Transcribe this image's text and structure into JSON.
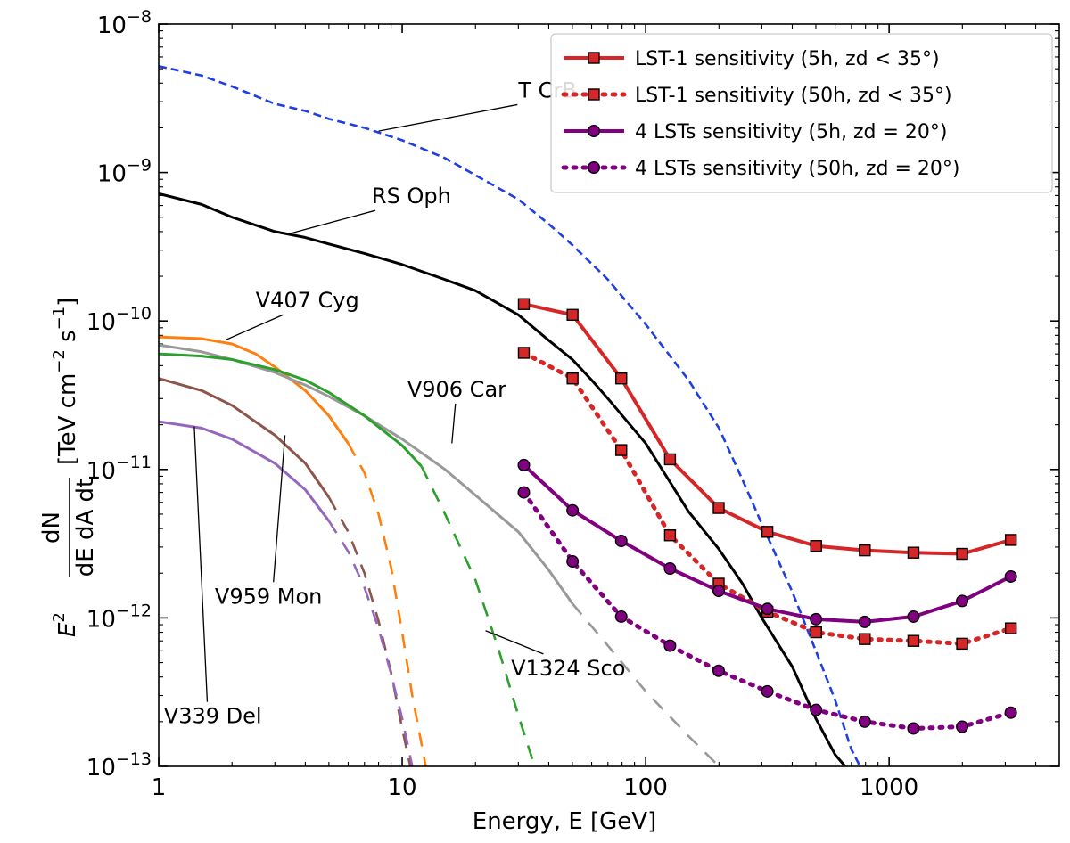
{
  "chart_data": {
    "type": "line",
    "xscale": "log",
    "yscale": "log",
    "xlim": [
      1,
      5000
    ],
    "ylim": [
      1e-13,
      1e-08
    ],
    "xlabel": "Energy, E [GeV]",
    "ylabel": "E^2 dN/(dE dA dt) [TeV cm^-2 s^-1]",
    "ylabel_parts": {
      "prefix": "E",
      "prefix_sup": "2",
      "numerator": "dN",
      "denominator": "dE dA dt",
      "unit_open": "[TeV cm",
      "unit_sup1": "−2",
      "unit_mid": " s",
      "unit_sup2": "−1",
      "unit_close": "]"
    },
    "xticks": [
      {
        "value": 1,
        "label": "1"
      },
      {
        "value": 10,
        "label": "10"
      },
      {
        "value": 100,
        "label": "100"
      },
      {
        "value": 1000,
        "label": "1000"
      }
    ],
    "yticks": [
      {
        "value": 1e-13,
        "base": "10",
        "exp": "−13"
      },
      {
        "value": 1e-12,
        "base": "10",
        "exp": "−12"
      },
      {
        "value": 1e-11,
        "base": "10",
        "exp": "−11"
      },
      {
        "value": 1e-10,
        "base": "10",
        "exp": "−10"
      },
      {
        "value": 1e-09,
        "base": "10",
        "exp": "−9"
      },
      {
        "value": 1e-08,
        "base": "10",
        "exp": "−8"
      }
    ],
    "legend_position": "top-right",
    "legend": [
      {
        "label": "LST-1 sensitivity (5h, zd < 35°)",
        "color": "#d62728",
        "style": "solid",
        "marker": "square",
        "series": "lst1_5h"
      },
      {
        "label": "LST-1 sensitivity (50h, zd < 35°)",
        "color": "#d62728",
        "style": "dotted",
        "marker": "square",
        "series": "lst1_50h"
      },
      {
        "label": "4 LSTs sensitivity (5h, zd = 20°)",
        "color": "#800080",
        "style": "solid",
        "marker": "circle",
        "series": "lst4_5h"
      },
      {
        "label": "4 LSTs sensitivity (50h, zd = 20°)",
        "color": "#800080",
        "style": "dotted",
        "marker": "circle",
        "series": "lst4_50h"
      }
    ],
    "series": [
      {
        "name": "T CrB",
        "id": "tcrb",
        "color": "#1f3fe0",
        "style": "dashed",
        "points": [
          [
            1,
            5.2e-09
          ],
          [
            1.5,
            4.5e-09
          ],
          [
            2,
            3.8e-09
          ],
          [
            3,
            2.9e-09
          ],
          [
            4,
            2.6e-09
          ],
          [
            5,
            2.3e-09
          ],
          [
            7,
            2e-09
          ],
          [
            10,
            1.65e-09
          ],
          [
            15,
            1.25e-09
          ],
          [
            20,
            9.6e-10
          ],
          [
            30,
            6.6e-10
          ],
          [
            40,
            4.5e-10
          ],
          [
            50,
            3.25e-10
          ],
          [
            70,
            1.9e-10
          ],
          [
            100,
            9.5e-11
          ],
          [
            150,
            4e-11
          ],
          [
            200,
            1.9e-11
          ],
          [
            250,
            8.5e-12
          ],
          [
            300,
            4.3e-12
          ],
          [
            400,
            1.5e-12
          ],
          [
            500,
            6e-13
          ],
          [
            600,
            2.8e-13
          ],
          [
            700,
            1.3e-13
          ],
          [
            760,
            1e-13
          ]
        ]
      },
      {
        "name": "RS Oph",
        "id": "rsoph",
        "color": "#000000",
        "style": "solid",
        "points": [
          [
            1,
            7.2e-10
          ],
          [
            1.5,
            6.1e-10
          ],
          [
            2,
            5e-10
          ],
          [
            3,
            4e-10
          ],
          [
            4,
            3.65e-10
          ],
          [
            5,
            3.3e-10
          ],
          [
            7,
            2.85e-10
          ],
          [
            10,
            2.4e-10
          ],
          [
            15,
            1.9e-10
          ],
          [
            20,
            1.6e-10
          ],
          [
            30,
            1.1e-10
          ],
          [
            40,
            7.4e-11
          ],
          [
            50,
            5.5e-11
          ],
          [
            60,
            4e-11
          ],
          [
            70,
            3e-11
          ],
          [
            100,
            1.5e-11
          ],
          [
            150,
            5.2e-12
          ],
          [
            200,
            2.9e-12
          ],
          [
            250,
            1.7e-12
          ],
          [
            300,
            1e-12
          ],
          [
            400,
            4.7e-13
          ],
          [
            500,
            2.1e-13
          ],
          [
            600,
            1.2e-13
          ],
          [
            660,
            1e-13
          ]
        ]
      },
      {
        "name": "V407 Cyg",
        "id": "v407cyg",
        "color": "#ff7f0e",
        "style": "solid",
        "points": [
          [
            1,
            7.8e-11
          ],
          [
            1.5,
            7.6e-11
          ],
          [
            2,
            7e-11
          ],
          [
            2.5,
            6e-11
          ],
          [
            3,
            4.9e-11
          ],
          [
            4,
            3.4e-11
          ],
          [
            5,
            2.3e-11
          ],
          [
            6,
            1.5e-11
          ]
        ]
      },
      {
        "name": "V407 Cyg (extrapolated)",
        "id": "v407cyg_ext",
        "color": "#ff7f0e",
        "style": "longdash",
        "points": [
          [
            6,
            1.5e-11
          ],
          [
            7,
            9.5e-12
          ],
          [
            8,
            5e-12
          ],
          [
            9,
            2.2e-12
          ],
          [
            10,
            8e-13
          ],
          [
            11,
            3e-13
          ],
          [
            12.5,
            1e-13
          ]
        ]
      },
      {
        "name": "V906 Car",
        "id": "v906car",
        "color": "#999999",
        "style": "solid",
        "points": [
          [
            1,
            6.9e-11
          ],
          [
            1.5,
            6.2e-11
          ],
          [
            2,
            5.5e-11
          ],
          [
            3,
            4.5e-11
          ],
          [
            4,
            3.7e-11
          ],
          [
            5,
            3.1e-11
          ],
          [
            7,
            2.3e-11
          ],
          [
            10,
            1.6e-11
          ],
          [
            15,
            1e-11
          ],
          [
            20,
            6.7e-12
          ],
          [
            30,
            3.8e-12
          ],
          [
            40,
            2.1e-12
          ],
          [
            50,
            1.25e-12
          ]
        ]
      },
      {
        "name": "V906 Car (extrapolated)",
        "id": "v906car_ext",
        "color": "#999999",
        "style": "longdash",
        "points": [
          [
            50,
            1.25e-12
          ],
          [
            70,
            6.5e-13
          ],
          [
            100,
            3.2e-13
          ],
          [
            150,
            1.6e-13
          ],
          [
            200,
            1e-13
          ]
        ]
      },
      {
        "name": "V1324 Sco",
        "id": "v1324sco",
        "color": "#2ca02c",
        "style": "solid",
        "points": [
          [
            1,
            6e-11
          ],
          [
            1.5,
            5.8e-11
          ],
          [
            2,
            5.5e-11
          ],
          [
            3,
            4.7e-11
          ],
          [
            4,
            4e-11
          ],
          [
            5,
            3.3e-11
          ],
          [
            7,
            2.3e-11
          ],
          [
            10,
            1.45e-11
          ],
          [
            12,
            1.05e-11
          ]
        ]
      },
      {
        "name": "V1324 Sco (extrapolated)",
        "id": "v1324sco_ext",
        "color": "#2ca02c",
        "style": "longdash",
        "points": [
          [
            12,
            1.05e-11
          ],
          [
            15,
            5e-12
          ],
          [
            20,
            1.8e-12
          ],
          [
            25,
            6e-13
          ],
          [
            30,
            2.2e-13
          ],
          [
            35,
            1e-13
          ]
        ]
      },
      {
        "name": "V959 Mon",
        "id": "v959mon",
        "color": "#8c564b",
        "style": "solid",
        "points": [
          [
            1,
            4.1e-11
          ],
          [
            1.5,
            3.4e-11
          ],
          [
            2,
            2.7e-11
          ],
          [
            3,
            1.7e-11
          ],
          [
            4,
            1.1e-11
          ],
          [
            5,
            6.5e-12
          ]
        ]
      },
      {
        "name": "V959 Mon (extrapolated)",
        "id": "v959mon_ext",
        "color": "#8c564b",
        "style": "longdash",
        "points": [
          [
            5,
            6.5e-12
          ],
          [
            6,
            3.8e-12
          ],
          [
            7,
            2e-12
          ],
          [
            8,
            9.5e-13
          ],
          [
            9,
            4.3e-13
          ],
          [
            10,
            1.8e-13
          ],
          [
            10.8,
            1e-13
          ]
        ]
      },
      {
        "name": "V339 Del",
        "id": "v339del",
        "color": "#9467bd",
        "style": "solid",
        "points": [
          [
            1,
            2.1e-11
          ],
          [
            1.5,
            1.9e-11
          ],
          [
            2,
            1.6e-11
          ],
          [
            3,
            1.1e-11
          ],
          [
            4,
            7.3e-12
          ],
          [
            5,
            4.5e-12
          ]
        ]
      },
      {
        "name": "V339 Del (extrapolated)",
        "id": "v339del_ext",
        "color": "#9467bd",
        "style": "longdash",
        "points": [
          [
            5,
            4.5e-12
          ],
          [
            6,
            2.8e-12
          ],
          [
            7,
            1.6e-12
          ],
          [
            8,
            8.5e-13
          ],
          [
            9,
            4.2e-13
          ],
          [
            10,
            2.1e-13
          ],
          [
            11,
            1e-13
          ]
        ]
      },
      {
        "name": "LST-1 sensitivity (5h, zd < 35°)",
        "id": "lst1_5h",
        "color": "#d62728",
        "style": "solid",
        "marker": "square",
        "points": [
          [
            31.6,
            1.3e-10
          ],
          [
            50.1,
            1.1e-10
          ],
          [
            79.4,
            4.1e-11
          ],
          [
            125.9,
            1.17e-11
          ],
          [
            199.5,
            5.5e-12
          ],
          [
            316.2,
            3.8e-12
          ],
          [
            501.2,
            3.05e-12
          ],
          [
            794.3,
            2.85e-12
          ],
          [
            1258.9,
            2.75e-12
          ],
          [
            1995.3,
            2.7e-12
          ],
          [
            3162.3,
            3.35e-12
          ]
        ]
      },
      {
        "name": "LST-1 sensitivity (50h, zd < 35°)",
        "id": "lst1_50h",
        "color": "#d62728",
        "style": "dotted",
        "marker": "square",
        "points": [
          [
            31.6,
            6.1e-11
          ],
          [
            50.1,
            4.1e-11
          ],
          [
            79.4,
            1.35e-11
          ],
          [
            125.9,
            3.6e-12
          ],
          [
            199.5,
            1.7e-12
          ],
          [
            316.2,
            1.1e-12
          ],
          [
            501.2,
            8e-13
          ],
          [
            794.3,
            7.2e-13
          ],
          [
            1258.9,
            7e-13
          ],
          [
            1995.3,
            6.7e-13
          ],
          [
            3162.3,
            8.5e-13
          ]
        ]
      },
      {
        "name": "4 LSTs sensitivity (5h, zd = 20°)",
        "id": "lst4_5h",
        "color": "#800080",
        "style": "solid",
        "marker": "circle",
        "points": [
          [
            31.6,
            1.07e-11
          ],
          [
            50.1,
            5.3e-12
          ],
          [
            79.4,
            3.3e-12
          ],
          [
            125.9,
            2.15e-12
          ],
          [
            199.5,
            1.52e-12
          ],
          [
            316.2,
            1.15e-12
          ],
          [
            501.2,
            9.8e-13
          ],
          [
            794.3,
            9.4e-13
          ],
          [
            1258.9,
            1.02e-12
          ],
          [
            1995.3,
            1.3e-12
          ],
          [
            3162.3,
            1.9e-12
          ]
        ]
      },
      {
        "name": "4 LSTs sensitivity (50h, zd = 20°)",
        "id": "lst4_50h",
        "color": "#800080",
        "style": "dotted",
        "marker": "circle",
        "points": [
          [
            31.6,
            7e-12
          ],
          [
            50.1,
            2.4e-12
          ],
          [
            79.4,
            1.02e-12
          ],
          [
            125.9,
            6.5e-13
          ],
          [
            199.5,
            4.4e-13
          ],
          [
            316.2,
            3.2e-13
          ],
          [
            501.2,
            2.4e-13
          ],
          [
            794.3,
            2e-13
          ],
          [
            1258.9,
            1.8e-13
          ],
          [
            1995.3,
            1.85e-13
          ],
          [
            3162.3,
            2.3e-13
          ]
        ]
      }
    ],
    "annotations": [
      {
        "text": "T CrB",
        "series": "tcrb",
        "point": [
          8,
          1.9e-09
        ],
        "label_at": [
          30,
          3.2e-09
        ],
        "anchor": "start"
      },
      {
        "text": "RS Oph",
        "series": "rsoph",
        "point": [
          3.5,
          3.9e-10
        ],
        "label_at": [
          7.5,
          6.2e-10
        ],
        "anchor": "start"
      },
      {
        "text": "V407 Cyg",
        "series": "v407cyg",
        "point": [
          1.9,
          7.5e-11
        ],
        "label_at": [
          2.5,
          1.23e-10
        ],
        "anchor": "start"
      },
      {
        "text": "V906 Car",
        "series": "v906car",
        "point": [
          16,
          1.5e-11
        ],
        "label_at": [
          10.5,
          3.1e-11
        ],
        "anchor": "start"
      },
      {
        "text": "V1324 Sco",
        "series": "v1324sco",
        "point": [
          22,
          8.2e-13
        ],
        "label_at": [
          28,
          4.1e-13
        ],
        "anchor": "start"
      },
      {
        "text": "V959 Mon",
        "series": "v959mon",
        "point": [
          3.3,
          1.7e-11
        ],
        "label_at": [
          1.7,
          1.25e-12
        ],
        "anchor": "start"
      },
      {
        "text": "V339 Del",
        "series": "v339del",
        "point": [
          1.4,
          1.95e-11
        ],
        "label_at": [
          1.05,
          1.95e-13
        ],
        "anchor": "start"
      }
    ]
  }
}
